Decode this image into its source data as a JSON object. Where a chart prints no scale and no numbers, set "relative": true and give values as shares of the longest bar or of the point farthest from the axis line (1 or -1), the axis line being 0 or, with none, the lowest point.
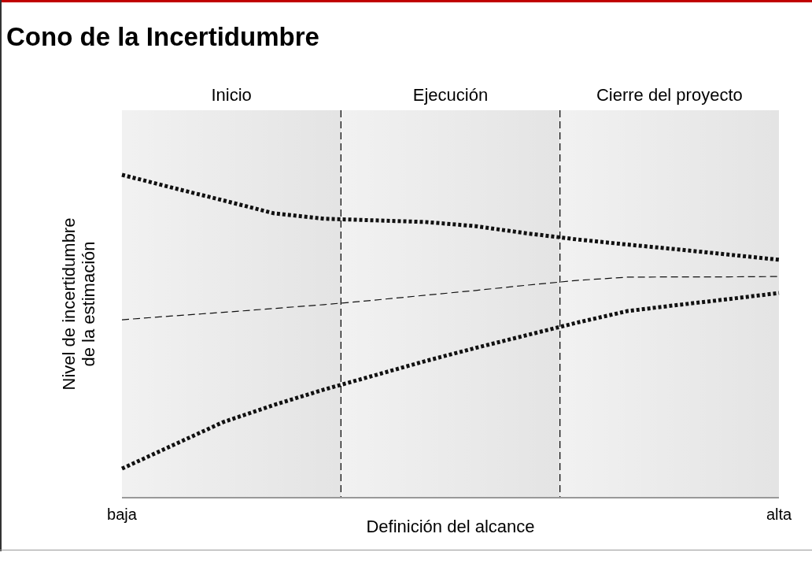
{
  "chart_data": {
    "type": "line",
    "title": "Cono de la Incertidumbre",
    "xlabel": "Definición del alcance",
    "ylabel": "Nivel de incertidumbre\nde la estimación",
    "relative": true,
    "categories": [
      "baja",
      null,
      null,
      null,
      null,
      null,
      null,
      null,
      null,
      null,
      null,
      null,
      null,
      "alta"
    ],
    "series": [
      {
        "color": "#111111",
        "line_style": "dotted",
        "values": [
          1,
          0.96,
          0.921,
          0.881,
          0.864,
          0.859,
          0.854,
          0.841,
          0.819,
          0.8,
          0.784,
          0.769,
          0.753,
          0.737
        ]
      },
      {
        "color": "#111111",
        "line_style": "dashed",
        "values": [
          0.551,
          0.563,
          0.574,
          0.586,
          0.598,
          0.612,
          0.627,
          0.642,
          0.658,
          0.673,
          0.683,
          0.684,
          0.684,
          0.685
        ]
      },
      {
        "color": "#111111",
        "line_style": "dotted",
        "values": [
          0.09,
          0.162,
          0.234,
          0.287,
          0.335,
          0.379,
          0.423,
          0.464,
          0.503,
          0.542,
          0.578,
          0.597,
          0.615,
          0.634
        ]
      }
    ],
    "annotations": [
      "Inicio",
      "Ejecución",
      "Cierre del proyecto"
    ],
    "grid": false,
    "marker": "none"
  }
}
